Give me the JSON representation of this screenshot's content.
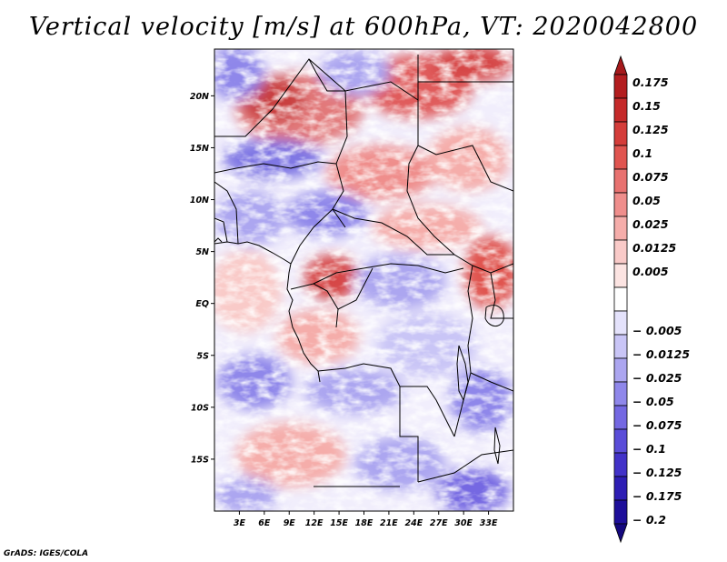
{
  "title": "Vertical velocity [m/s] at 600hPa, VT: 2020042800",
  "footer": "GrADS: IGES/COLA",
  "map": {
    "lon_range": [
      0,
      36
    ],
    "lat_range": [
      -20,
      24.5
    ],
    "lat_ticks": [
      {
        "value": 20,
        "label": "20N"
      },
      {
        "value": 15,
        "label": "15N"
      },
      {
        "value": 10,
        "label": "10N"
      },
      {
        "value": 5,
        "label": "5N"
      },
      {
        "value": 0,
        "label": "EQ"
      },
      {
        "value": -5,
        "label": "5S"
      },
      {
        "value": -10,
        "label": "10S"
      },
      {
        "value": -15,
        "label": "15S"
      }
    ],
    "lon_ticks": [
      {
        "value": 3,
        "label": "3E"
      },
      {
        "value": 6,
        "label": "6E"
      },
      {
        "value": 9,
        "label": "9E"
      },
      {
        "value": 12,
        "label": "12E"
      },
      {
        "value": 15,
        "label": "15E"
      },
      {
        "value": 18,
        "label": "18E"
      },
      {
        "value": 21,
        "label": "21E"
      },
      {
        "value": 24,
        "label": "24E"
      },
      {
        "value": 27,
        "label": "27E"
      },
      {
        "value": 30,
        "label": "30E"
      },
      {
        "value": 33,
        "label": "33E"
      }
    ]
  },
  "colorbar": {
    "levels": [
      {
        "label": "0.175",
        "color": "#b31d1f"
      },
      {
        "label": "0.15",
        "color": "#c52a2a"
      },
      {
        "label": "0.125",
        "color": "#d43d3a"
      },
      {
        "label": "0.1",
        "color": "#e05550"
      },
      {
        "label": "0.075",
        "color": "#e87270"
      },
      {
        "label": "0.05",
        "color": "#ef8e8c"
      },
      {
        "label": "0.025",
        "color": "#f5adaa"
      },
      {
        "label": "0.0125",
        "color": "#f9cac8"
      },
      {
        "label": "0.005",
        "color": "#fce4e2"
      },
      {
        "label": "",
        "color": "#ffffff"
      },
      {
        "label": "− 0.005",
        "color": "#e4e2fb"
      },
      {
        "label": "− 0.0125",
        "color": "#c9c5f6"
      },
      {
        "label": "− 0.025",
        "color": "#aca6f0"
      },
      {
        "label": "− 0.05",
        "color": "#8f87ea"
      },
      {
        "label": "− 0.075",
        "color": "#7468e2"
      },
      {
        "label": "− 0.1",
        "color": "#5a4dd8"
      },
      {
        "label": "− 0.125",
        "color": "#4232c8"
      },
      {
        "label": "− 0.175",
        "color": "#2e1eb4"
      },
      {
        "label": "− 0.2",
        "color": "#1e0f9a"
      }
    ],
    "top_color": "#a5191b",
    "bottom_color": "#14087e"
  }
}
